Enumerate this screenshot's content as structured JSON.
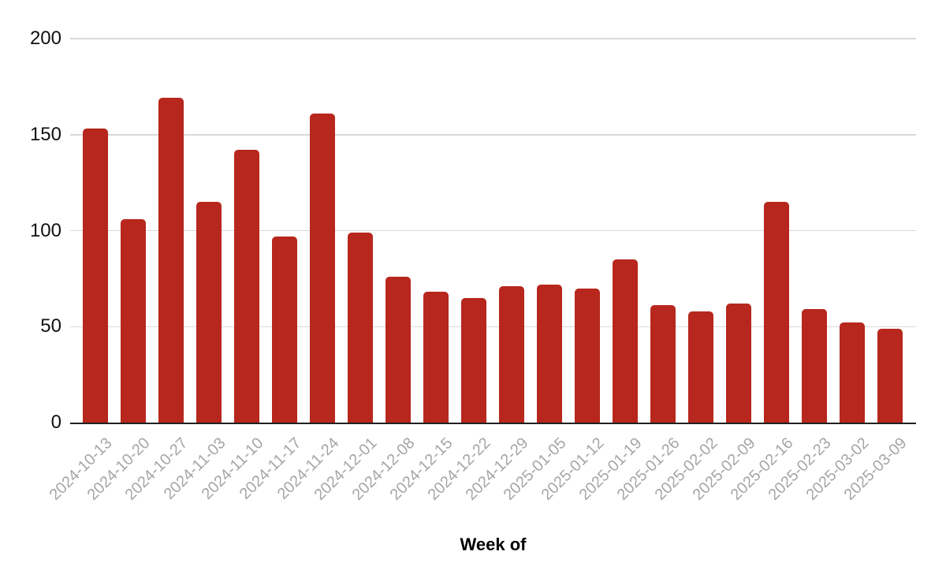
{
  "chart_data": {
    "type": "bar",
    "title": "",
    "xlabel": "Week of",
    "ylabel": "",
    "ylim": [
      0,
      200
    ],
    "y_ticks": [
      0,
      50,
      100,
      150,
      200
    ],
    "grid": true,
    "legend": false,
    "categories": [
      "2024-10-13",
      "2024-10-20",
      "2024-10-27",
      "2024-11-03",
      "2024-11-10",
      "2024-11-17",
      "2024-11-24",
      "2024-12-01",
      "2024-12-08",
      "2024-12-15",
      "2024-12-22",
      "2024-12-29",
      "2025-01-05",
      "2025-01-12",
      "2025-01-19",
      "2025-01-26",
      "2025-02-02",
      "2025-02-09",
      "2025-02-16",
      "2025-02-23",
      "2025-03-02",
      "2025-03-09"
    ],
    "values": [
      153,
      106,
      169,
      115,
      142,
      97,
      161,
      99,
      76,
      68,
      65,
      71,
      72,
      70,
      85,
      61,
      58,
      62,
      115,
      59,
      52,
      49
    ],
    "colors": {
      "bar": "#b7271d",
      "gridline": "#d9d9d9",
      "axis_baseline": "#212121",
      "y_tick_text": "#111111",
      "x_tick_text": "#a6a6a6",
      "axis_title_text": "#000000",
      "background": "#ffffff"
    }
  }
}
